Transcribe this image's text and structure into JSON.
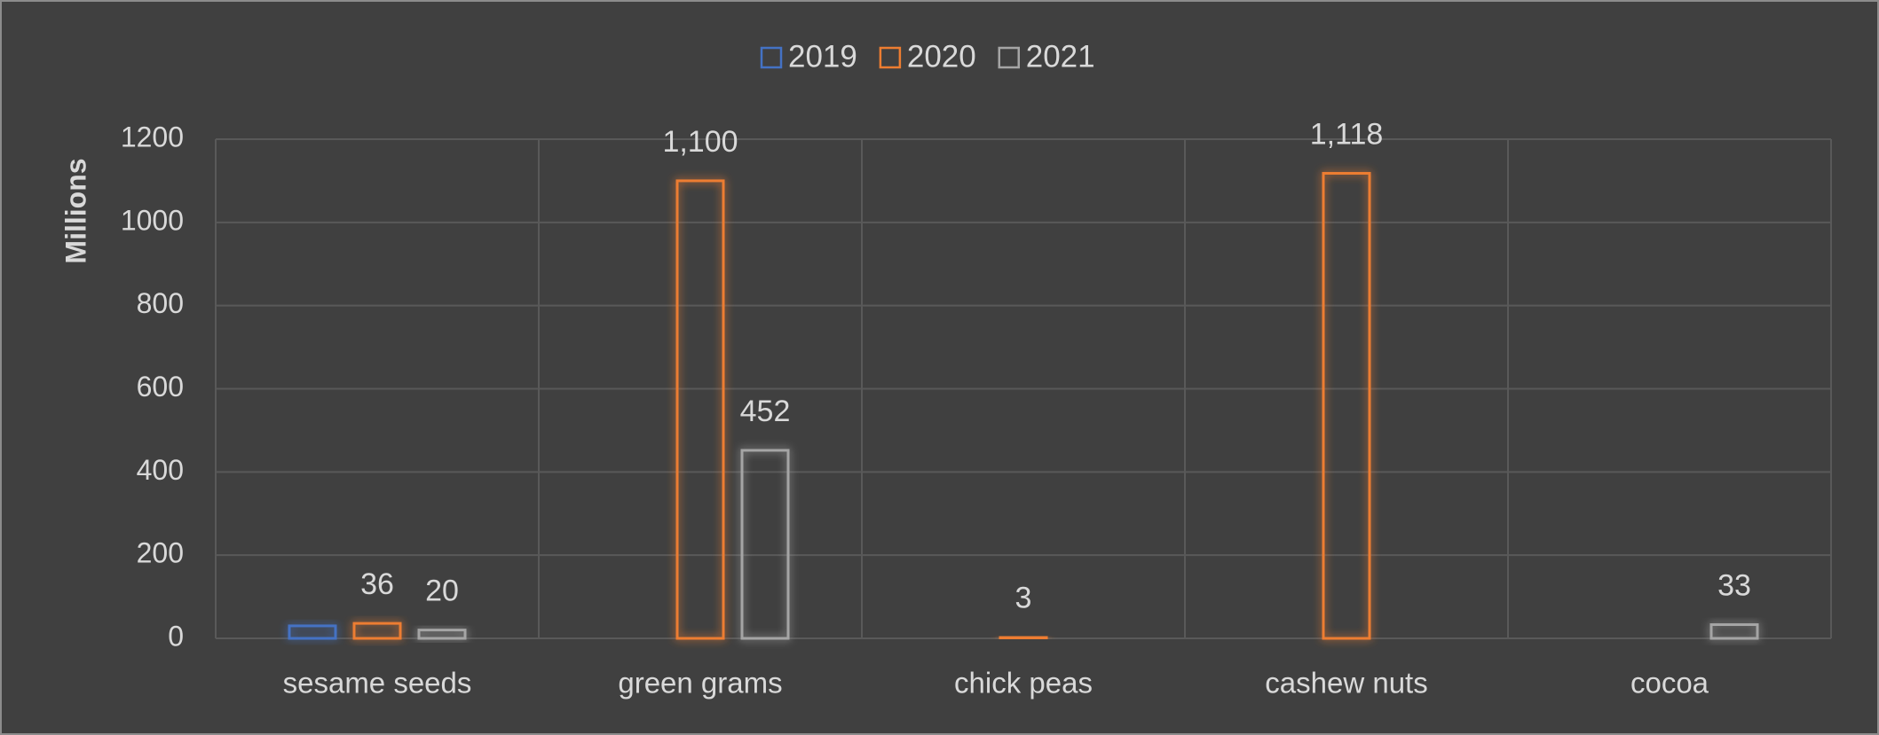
{
  "chart_data": {
    "type": "bar",
    "y_label": "Millions",
    "categories": [
      "sesame seeds",
      "green grams",
      "chick peas",
      "cashew nuts",
      "cocoa"
    ],
    "series": [
      {
        "name": "2019",
        "color": "#4472c4",
        "values": [
          30,
          null,
          null,
          null,
          null
        ]
      },
      {
        "name": "2020",
        "color": "#ed7d31",
        "values": [
          36,
          1100,
          3,
          1118,
          null
        ],
        "value_labels": [
          "36",
          "1,100",
          "3",
          "1,118",
          null
        ]
      },
      {
        "name": "2021",
        "color": "#a5a5a5",
        "values": [
          20,
          452,
          null,
          null,
          33
        ],
        "value_labels": [
          "20",
          "452",
          null,
          null,
          "33"
        ]
      }
    ],
    "ylim": [
      0,
      1200
    ],
    "yticks": [
      0,
      200,
      400,
      600,
      800,
      1000,
      1200
    ],
    "grid": true,
    "legend": "top"
  }
}
